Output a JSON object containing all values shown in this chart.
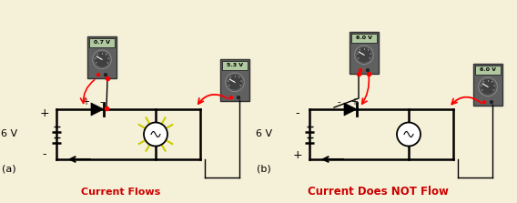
{
  "background_color": "#f5f0d8",
  "title_a": "Current Flows",
  "title_b": "Current Does NOT Flow",
  "label_a": "(a)",
  "label_b": "(b)",
  "voltage": "6 V",
  "text_color_title": "#cc0000",
  "meter_reading_a1": "0.7 V",
  "meter_reading_a2": "5.3 V",
  "meter_reading_b1": "6.0 V",
  "meter_reading_b2": "6.0 V"
}
